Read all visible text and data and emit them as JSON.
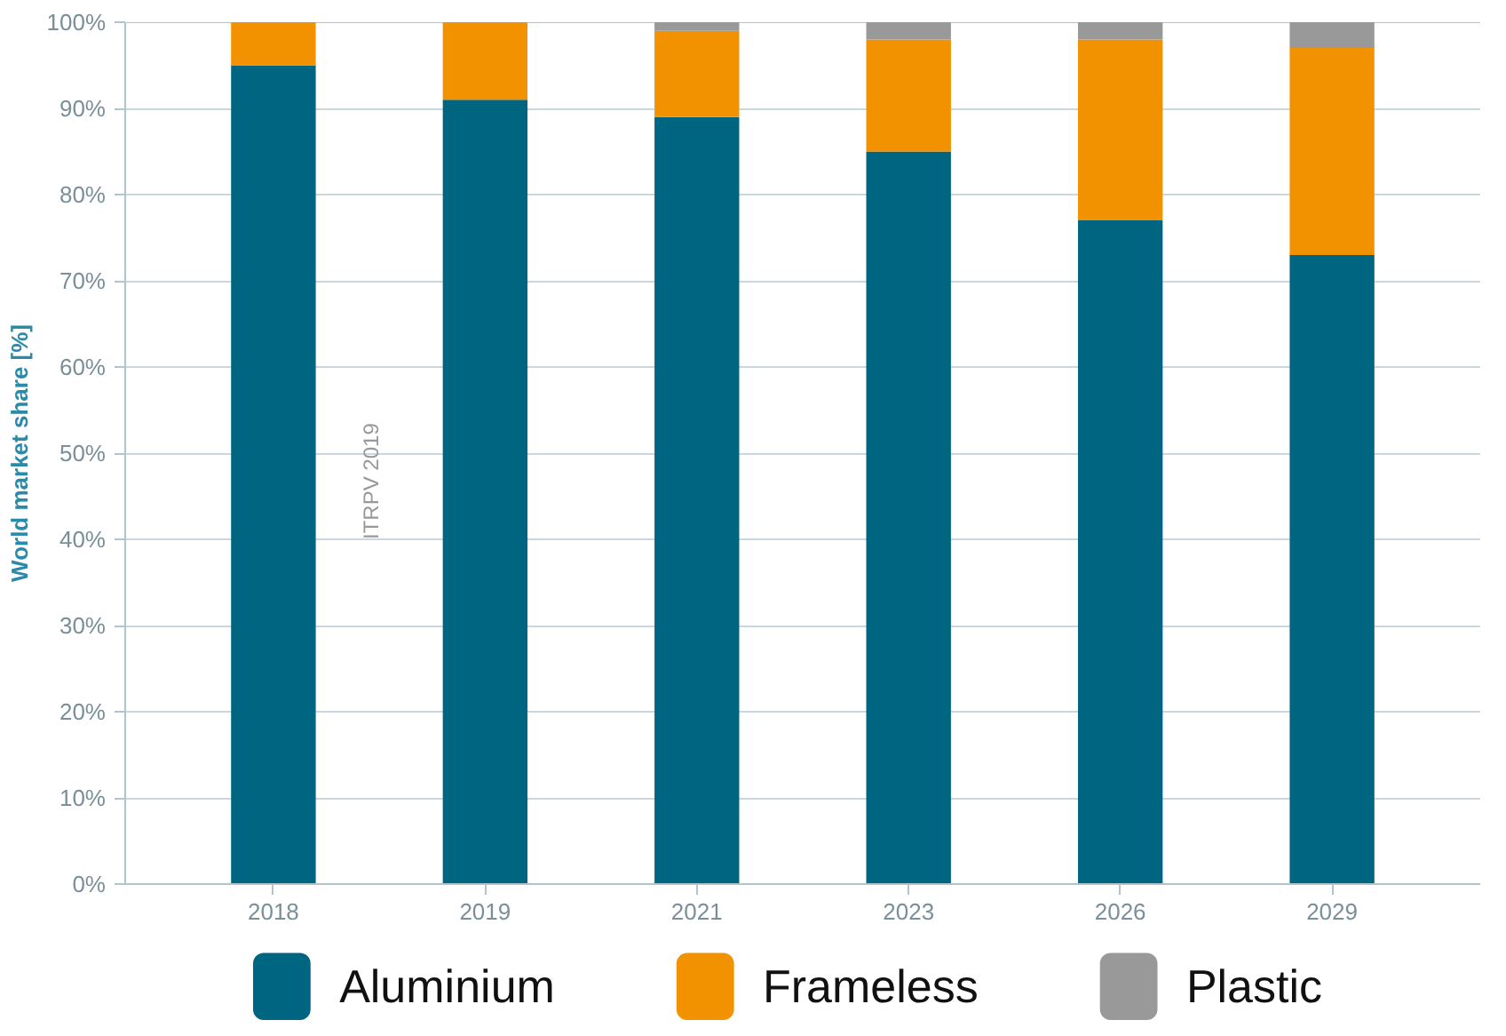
{
  "chart_data": {
    "type": "bar",
    "stacked": true,
    "ylabel": "World market share [%]",
    "categories": [
      "2018",
      "2019",
      "2021",
      "2023",
      "2026",
      "2029"
    ],
    "series": [
      {
        "name": "Aluminium",
        "color": "#006580",
        "values": [
          95,
          91,
          89,
          85,
          77,
          73
        ]
      },
      {
        "name": "Frameless",
        "color": "#f39200",
        "values": [
          5,
          9,
          10,
          13,
          21,
          24
        ]
      },
      {
        "name": "Plastic",
        "color": "#999999",
        "values": [
          0,
          0,
          1,
          2,
          2,
          3
        ]
      }
    ],
    "ylim": [
      0,
      100
    ],
    "yticks": [
      {
        "value": 0,
        "label": "0%"
      },
      {
        "value": 10,
        "label": "10%"
      },
      {
        "value": 20,
        "label": "20%"
      },
      {
        "value": 30,
        "label": "30%"
      },
      {
        "value": 40,
        "label": "40%"
      },
      {
        "value": 50,
        "label": "50%"
      },
      {
        "value": 60,
        "label": "60%"
      },
      {
        "value": 70,
        "label": "70%"
      },
      {
        "value": 80,
        "label": "80%"
      },
      {
        "value": 90,
        "label": "90%"
      },
      {
        "value": 100,
        "label": "100%"
      }
    ],
    "grid": "y",
    "legend": "bottom",
    "annotations": [
      "ITRPV 2019"
    ]
  }
}
